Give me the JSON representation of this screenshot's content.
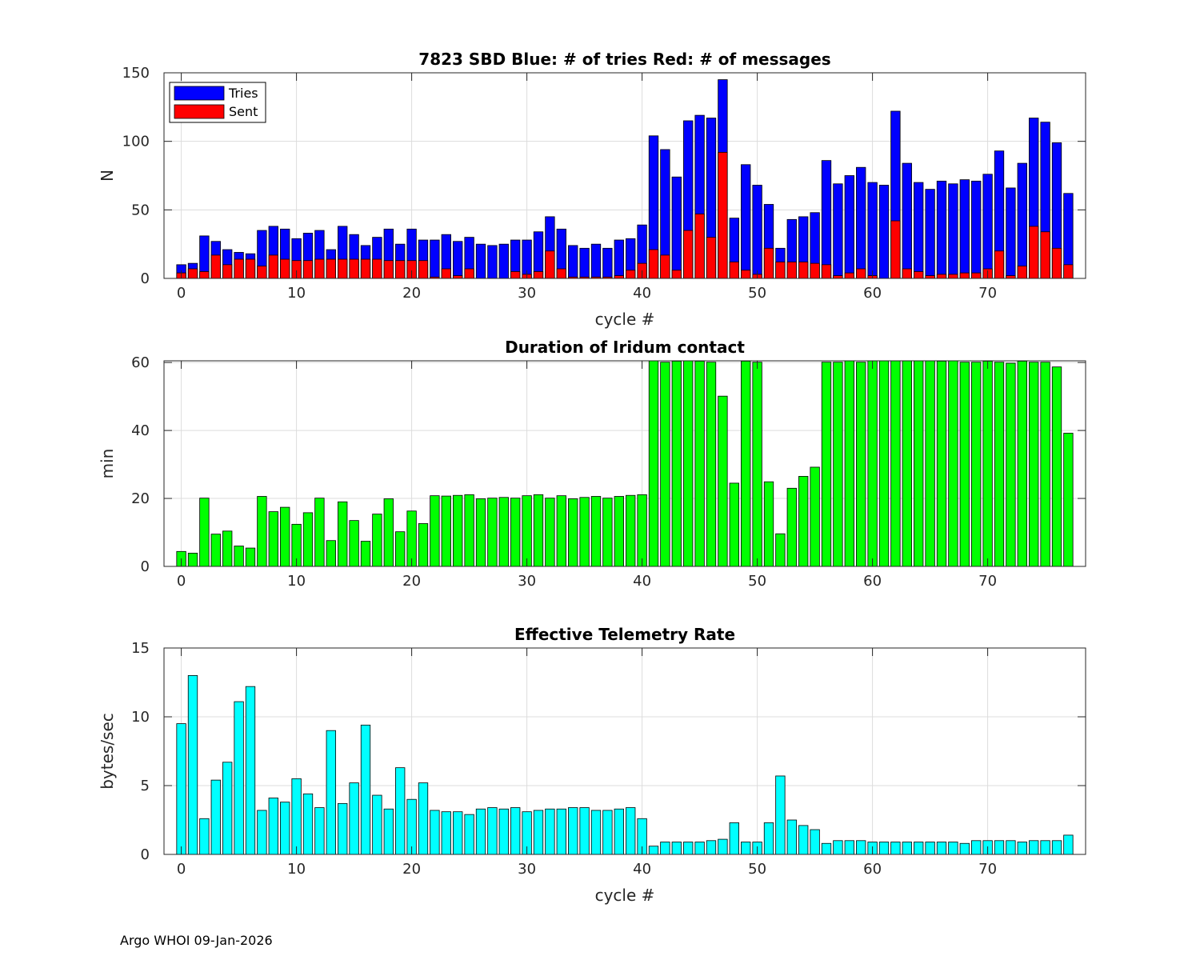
{
  "footer": "Argo WHOI 09-Jan-2026",
  "colors": {
    "tries": "#0000ff",
    "sent": "#ff0000",
    "duration": "#00ff00",
    "rate": "#00ffff",
    "grid": "#dcdcdc",
    "axis": "#262626"
  },
  "chart_data": [
    {
      "type": "bar",
      "title": "7823 SBD  Blue: # of tries   Red: # of messages",
      "xlabel": "cycle #",
      "ylabel": "N",
      "xlim": [
        -1.5,
        78.5
      ],
      "ylim": [
        0,
        150
      ],
      "xticks": [
        0,
        10,
        20,
        30,
        40,
        50,
        60,
        70
      ],
      "yticks": [
        0,
        50,
        100,
        150
      ],
      "grid": true,
      "legend": {
        "position": "top-left",
        "entries": [
          "Tries",
          "Sent"
        ]
      },
      "x_start": 0,
      "series": [
        {
          "name": "Tries",
          "color": "#0000ff",
          "values": [
            10,
            11,
            31,
            27,
            21,
            19,
            18,
            35,
            38,
            36,
            29,
            33,
            35,
            21,
            38,
            32,
            24,
            30,
            36,
            25,
            36,
            28,
            28,
            32,
            27,
            30,
            25,
            24,
            25,
            28,
            28,
            34,
            45,
            36,
            24,
            22,
            25,
            22,
            28,
            29,
            39,
            104,
            94,
            74,
            115,
            119,
            117,
            145,
            44,
            83,
            68,
            54,
            22,
            43,
            45,
            48,
            86,
            69,
            75,
            81,
            70,
            68,
            122,
            84,
            70,
            65,
            71,
            69,
            72,
            71,
            76,
            93,
            66,
            84,
            117,
            114,
            99,
            62
          ]
        },
        {
          "name": "Sent",
          "color": "#ff0000",
          "values": [
            4,
            7,
            5,
            17,
            10,
            14,
            14,
            9,
            17,
            14,
            13,
            13,
            14,
            14,
            14,
            14,
            14,
            14,
            13,
            13,
            13,
            13,
            1,
            7,
            2,
            7,
            0,
            0,
            0,
            5,
            3,
            5,
            20,
            7,
            1,
            1,
            1,
            1,
            2,
            6,
            11,
            21,
            17,
            6,
            35,
            47,
            30,
            92,
            12,
            6,
            3,
            22,
            12,
            12,
            12,
            11,
            10,
            2,
            4,
            7,
            2,
            0,
            42,
            7,
            5,
            2,
            3,
            3,
            4,
            4,
            7,
            20,
            2,
            9,
            38,
            34,
            22,
            10
          ]
        }
      ]
    },
    {
      "type": "bar",
      "title": "Duration of Iridum contact",
      "xlabel": "",
      "ylabel": "min",
      "xlim": [
        -1.5,
        78.5
      ],
      "ylim": [
        0,
        60.5
      ],
      "xticks": [
        0,
        10,
        20,
        30,
        40,
        50,
        60,
        70
      ],
      "yticks": [
        0,
        20,
        40,
        60
      ],
      "grid": true,
      "x_start": 0,
      "series": [
        {
          "name": "Duration",
          "color": "#00ff00",
          "values": [
            4.4,
            3.9,
            20.1,
            9.5,
            10.4,
            6.0,
            5.4,
            20.6,
            16.1,
            17.4,
            12.4,
            15.8,
            20.1,
            7.6,
            19.0,
            13.5,
            7.4,
            15.4,
            19.9,
            10.2,
            16.3,
            12.6,
            20.8,
            20.7,
            20.9,
            21.1,
            19.9,
            20.1,
            20.3,
            20.1,
            20.8,
            21.1,
            20.1,
            20.8,
            19.9,
            20.3,
            20.6,
            20.1,
            20.6,
            20.9,
            21.1,
            60.8,
            60.1,
            60.4,
            60.8,
            60.4,
            60.1,
            50.1,
            24.5,
            60.4,
            60.1,
            24.9,
            9.6,
            23.0,
            26.5,
            29.2,
            60.1,
            60.1,
            60.8,
            60.1,
            60.8,
            60.8,
            60.8,
            60.8,
            60.8,
            60.8,
            60.4,
            60.8,
            60.1,
            60.1,
            60.4,
            60.1,
            59.8,
            60.4,
            60.1,
            60.1,
            58.7,
            39.2
          ]
        }
      ]
    },
    {
      "type": "bar",
      "title": "Effective Telemetry Rate",
      "xlabel": "cycle #",
      "ylabel": "bytes/sec",
      "xlim": [
        -1.5,
        78.5
      ],
      "ylim": [
        0,
        15
      ],
      "xticks": [
        0,
        10,
        20,
        30,
        40,
        50,
        60,
        70
      ],
      "yticks": [
        0,
        5,
        10,
        15
      ],
      "grid": true,
      "x_start": 0,
      "series": [
        {
          "name": "Rate",
          "color": "#00ffff",
          "values": [
            9.5,
            13.0,
            2.6,
            5.4,
            6.7,
            11.1,
            12.2,
            3.2,
            4.1,
            3.8,
            5.5,
            4.4,
            3.4,
            9.0,
            3.7,
            5.2,
            9.4,
            4.3,
            3.3,
            6.3,
            4.0,
            5.2,
            3.2,
            3.1,
            3.1,
            2.9,
            3.3,
            3.4,
            3.3,
            3.4,
            3.1,
            3.2,
            3.3,
            3.3,
            3.4,
            3.4,
            3.2,
            3.2,
            3.3,
            3.4,
            2.6,
            0.6,
            0.9,
            0.9,
            0.9,
            0.9,
            1.0,
            1.1,
            2.3,
            0.9,
            0.9,
            2.3,
            5.7,
            2.5,
            2.1,
            1.8,
            0.8,
            1.0,
            1.0,
            1.0,
            0.9,
            0.9,
            0.9,
            0.9,
            0.9,
            0.9,
            0.9,
            0.9,
            0.8,
            1.0,
            1.0,
            1.0,
            1.0,
            0.9,
            1.0,
            1.0,
            1.0,
            1.4
          ]
        }
      ]
    }
  ]
}
